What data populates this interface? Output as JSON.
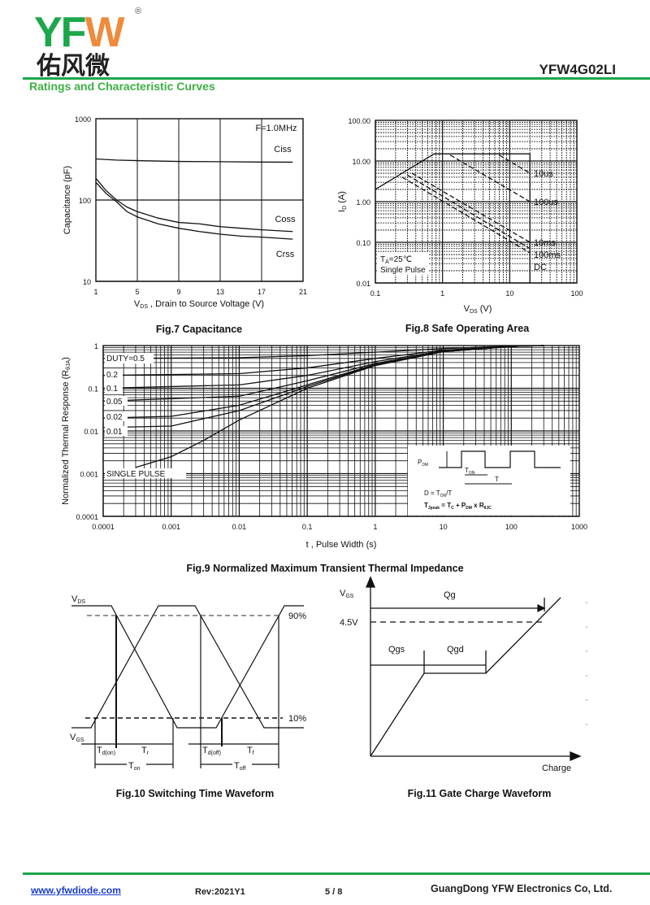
{
  "header": {
    "logo_text": "YFW",
    "logo_cn": "佑风微",
    "registered": "®",
    "part_number": "YFW4G02LI",
    "section_title": "Ratings and Characteristic Curves",
    "brand_colors": {
      "green": "#1ba74a",
      "orange": "#f08a3c"
    }
  },
  "chart_data": [
    {
      "type": "line",
      "caption": "Fig.7 Capacitance",
      "xlabel_main": "V",
      "xlabel_sub": "DS",
      "xlabel_rest": " , Drain to Source Voltage (V)",
      "ylabel": "Capacitance (pF)",
      "note": "F=1.0MHz",
      "xlim": [
        1,
        21
      ],
      "ylim": [
        10,
        1000
      ],
      "yscale": "log",
      "grid": true,
      "xticks": [
        "1",
        "5",
        "9",
        "13",
        "17",
        "21"
      ],
      "yticks": [
        "10",
        "100",
        "1000"
      ],
      "series": [
        {
          "name": "Ciss",
          "x": [
            1,
            3,
            5,
            9,
            13,
            17,
            20
          ],
          "y": [
            320,
            310,
            305,
            298,
            296,
            293,
            292
          ]
        },
        {
          "name": "Coss",
          "x": [
            1,
            2,
            3,
            4,
            5,
            7,
            9,
            11,
            13,
            15,
            17,
            20
          ],
          "y": [
            185,
            130,
            100,
            82,
            72,
            60,
            53,
            51,
            47,
            45,
            43,
            41
          ]
        },
        {
          "name": "Crss",
          "x": [
            1,
            2,
            3,
            4,
            5,
            7,
            9,
            11,
            13,
            15,
            17,
            20
          ],
          "y": [
            165,
            120,
            95,
            72,
            62,
            51,
            45,
            41,
            38,
            36,
            35,
            33
          ]
        }
      ]
    },
    {
      "type": "line",
      "caption": "Fig.8 Safe Operating Area",
      "xlabel_main": "V",
      "xlabel_sub": "DS",
      "xlabel_rest": " (V)",
      "ylabel_main": "I",
      "ylabel_sub": "D",
      "ylabel_rest": " (A)",
      "xlim": [
        0.1,
        100
      ],
      "ylim": [
        0.01,
        100
      ],
      "xscale": "log",
      "yscale": "log",
      "grid": true,
      "xticks": [
        "0.1",
        "1",
        "10",
        "100"
      ],
      "yticks": [
        "0.01",
        "0.10",
        "1.00",
        "10.00",
        "100.00"
      ],
      "annotation_line1_main": "T",
      "annotation_line1_sub": "A",
      "annotation_line1_rest": "=25℃",
      "annotation_line2": "Single Pulse",
      "series": [
        {
          "name": "limit",
          "x": [
            0.1,
            0.75,
            20,
            20
          ],
          "y": [
            2,
            15,
            15,
            0.01
          ],
          "style": "solid"
        },
        {
          "name": "10us",
          "x": [
            7,
            20
          ],
          "y": [
            14,
            5
          ],
          "style": "dashed"
        },
        {
          "name": "100us",
          "x": [
            1.3,
            20
          ],
          "y": [
            14,
            1.0
          ],
          "style": "dashed"
        },
        {
          "name": "10ms",
          "x": [
            0.35,
            20
          ],
          "y": [
            5,
            0.1
          ],
          "style": "dashed"
        },
        {
          "name": "100ms",
          "x": [
            0.3,
            20
          ],
          "y": [
            4.5,
            0.07
          ],
          "style": "dashed"
        },
        {
          "name": "DC",
          "x": [
            0.25,
            20
          ],
          "y": [
            4,
            0.055
          ],
          "style": "dashed"
        }
      ]
    },
    {
      "type": "line",
      "caption": "Fig.9 Normalized Maximum Transient Thermal Impedance",
      "xlabel": "t , Pulse Width (s)",
      "ylabel_main": "Normalized Thermal Response (R",
      "ylabel_sub": "θJA",
      "ylabel_rest": ")",
      "xlim": [
        0.0001,
        1000
      ],
      "ylim": [
        0.0001,
        1
      ],
      "xscale": "log",
      "yscale": "log",
      "grid": true,
      "xticks": [
        "0.0001",
        "0.001",
        "0.01",
        "0.1",
        "1",
        "10",
        "100",
        "1000"
      ],
      "yticks": [
        "0.0001",
        "0.001",
        "0.01",
        "0.1",
        "1"
      ],
      "series": [
        {
          "name": "DUTY=0.5",
          "x": [
            0.0001,
            0.01,
            0.1,
            1,
            10,
            100,
            300
          ],
          "y": [
            0.5,
            0.52,
            0.58,
            0.7,
            0.85,
            0.97,
            1
          ]
        },
        {
          "name": "0.2",
          "x": [
            0.0001,
            0.01,
            0.1,
            1,
            10,
            100,
            300
          ],
          "y": [
            0.2,
            0.22,
            0.3,
            0.5,
            0.78,
            0.96,
            1
          ]
        },
        {
          "name": "0.1",
          "x": [
            0.0001,
            0.01,
            0.1,
            1,
            10,
            100,
            300
          ],
          "y": [
            0.1,
            0.12,
            0.2,
            0.42,
            0.75,
            0.95,
            1
          ]
        },
        {
          "name": "0.05",
          "x": [
            0.0001,
            0.01,
            0.1,
            1,
            10,
            100,
            300
          ],
          "y": [
            0.05,
            0.065,
            0.15,
            0.38,
            0.73,
            0.95,
            1
          ]
        },
        {
          "name": "0.02",
          "x": [
            0.0001,
            0.001,
            0.01,
            0.1,
            1,
            10,
            100,
            300
          ],
          "y": [
            0.02,
            0.022,
            0.04,
            0.12,
            0.36,
            0.72,
            0.95,
            1
          ]
        },
        {
          "name": "0.01",
          "x": [
            0.0001,
            0.001,
            0.01,
            0.1,
            1,
            10,
            100,
            300
          ],
          "y": [
            0.012,
            0.013,
            0.03,
            0.11,
            0.35,
            0.72,
            0.95,
            1
          ]
        },
        {
          "name": "SINGLE PULSE",
          "x": [
            0.0003,
            0.001,
            0.003,
            0.01,
            0.1,
            1,
            10,
            100,
            300
          ],
          "y": [
            0.0014,
            0.0025,
            0.006,
            0.018,
            0.1,
            0.34,
            0.72,
            0.95,
            1
          ]
        }
      ],
      "inset": {
        "pdm_main": "P",
        "pdm_sub": "DM",
        "ton_main": "T",
        "ton_sub": "ON",
        "t": "T",
        "formula1": "D = T",
        "formula1_sub": "ON",
        "formula1_rest": "/T",
        "formula2_main": "T",
        "formula2_sub": "Jpeak",
        "formula2_rest": " = T",
        "formula2_sub2": "C",
        "formula2_rest2": " + P",
        "formula2_sub3": "DM",
        "formula2_rest3": " x R",
        "formula2_sub4": "θJC"
      }
    }
  ],
  "fig10": {
    "caption": "Fig.10 Switching Time Waveform",
    "vds": "V",
    "vds_sub": "DS",
    "vgs": "V",
    "vgs_sub": "GS",
    "p90": "90%",
    "p10": "10%",
    "tdon": "T",
    "tdon_sub": "d(on)",
    "tr": "T",
    "tr_sub": "r",
    "tdoff": "T",
    "tdoff_sub": "d(off)",
    "tf": "T",
    "tf_sub": "f",
    "ton": "T",
    "ton_sub": "on",
    "toff": "T",
    "toff_sub": "off"
  },
  "fig11": {
    "caption": "Fig.11 Gate Charge Waveform",
    "vgs": "V",
    "vgs_sub": "GS",
    "v45": "4.5V",
    "qg": "Qg",
    "qgs": "Qgs",
    "qgd": "Qgd",
    "charge": "Charge"
  },
  "footer": {
    "website": "www.yfwdiode.com",
    "revision": "Rev:2021Y1",
    "page": "5 / 8",
    "company": "GuangDong YFW Electronics Co, Ltd."
  }
}
